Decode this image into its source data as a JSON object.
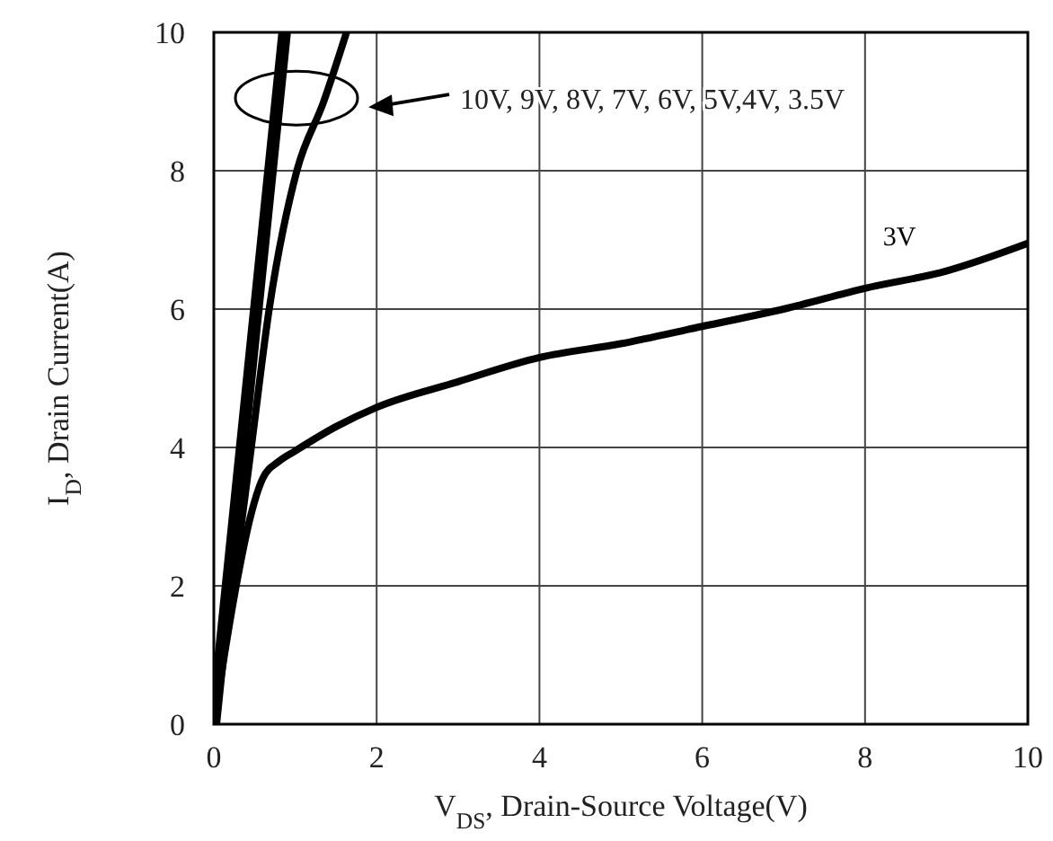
{
  "chart_data": {
    "type": "line",
    "xlabel": "V$_{DS}$, Drain-Source Voltage(V)",
    "ylabel": "I$_{D}$, Drain Current(A)",
    "xlim": [
      0,
      10
    ],
    "ylim": [
      0,
      10
    ],
    "xticks": [
      0,
      2,
      4,
      6,
      8,
      10
    ],
    "yticks": [
      0,
      2,
      4,
      6,
      8,
      10
    ],
    "grid": true,
    "line_style": "solid",
    "annotations": [
      "10V, 9V, 8V, 7V, 6V, 5V,4V, 3.5V"
    ],
    "series": [
      {
        "color": "#000000",
        "x": [
          0,
          0.87
        ],
        "values": [
          0,
          10
        ]
      },
      {
        "color": "#000000",
        "x": [
          0,
          0.24,
          0.46,
          0.68,
          1.02,
          1.35,
          1.63
        ],
        "values": [
          0,
          2,
          4,
          6,
          8,
          9,
          10
        ]
      },
      {
        "name": "3V",
        "color": "#000000",
        "x": [
          0,
          0.13,
          0.29,
          0.45,
          0.6,
          0.8,
          1.0,
          1.5,
          2,
          3,
          4,
          5,
          6,
          7,
          8,
          9,
          10
        ],
        "values": [
          0,
          1,
          2.1,
          3.0,
          3.55,
          3.8,
          3.95,
          4.3,
          4.58,
          4.95,
          5.3,
          5.5,
          5.75,
          6.0,
          6.3,
          6.55,
          6.95
        ]
      }
    ]
  }
}
